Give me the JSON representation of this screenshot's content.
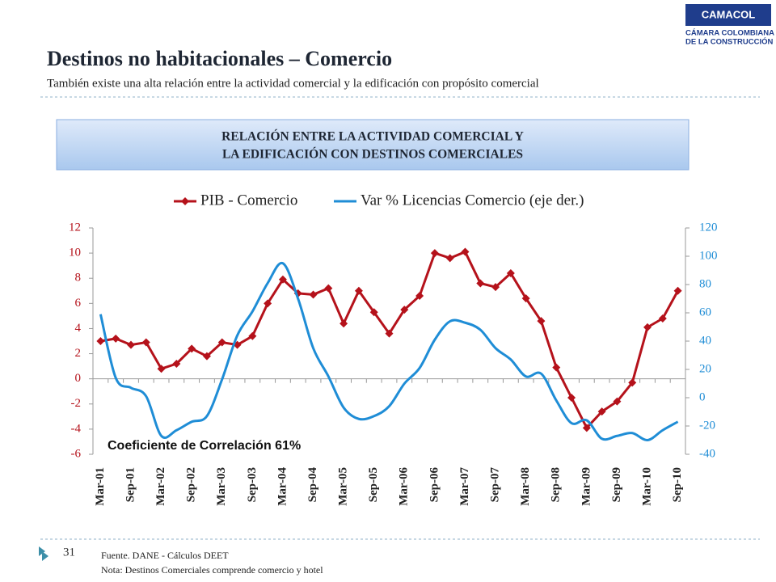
{
  "logo": {
    "name": "CAMACOL",
    "line1": "CÁMARA COLOMBIANA",
    "line2": "DE LA CONSTRUCCIÓN"
  },
  "header": {
    "title": "Destinos no habitacionales – Comercio",
    "subtitle": "También existe una alta relación entre la actividad comercial y la edificación con propósito comercial"
  },
  "box_title": [
    "RELACIÓN ENTRE LA ACTIVIDAD COMERCIAL Y",
    "LA EDIFICACIÓN CON DESTINOS COMERCIALES"
  ],
  "page_number": 31,
  "footer": [
    "Fuente. DANE  - Cálculos DEET",
    "Nota: Destinos Comerciales comprende comercio y hotel"
  ],
  "chart_data": {
    "type": "line",
    "annotation": "Coeficiente de Correlación 61%",
    "categories": [
      "Mar-01",
      null,
      "Sep-01",
      null,
      "Mar-02",
      null,
      "Sep-02",
      null,
      "Mar-03",
      null,
      "Sep-03",
      null,
      "Mar-04",
      null,
      "Sep-04",
      null,
      "Mar-05",
      null,
      "Sep-05",
      null,
      "Mar-06",
      null,
      "Sep-06",
      null,
      "Mar-07",
      null,
      "Sep-07",
      null,
      "Mar-08",
      null,
      "Sep-08",
      null,
      "Mar-09",
      null,
      "Sep-09",
      null,
      "Mar-10",
      null,
      "Sep-10"
    ],
    "series": [
      {
        "name": "PIB - Comercio",
        "color": "#b5121b",
        "marker": "diamond",
        "values": [
          3.0,
          3.2,
          2.7,
          2.9,
          0.8,
          1.2,
          2.4,
          1.8,
          2.9,
          2.7,
          3.4,
          6.0,
          7.9,
          6.8,
          6.7,
          7.2,
          4.4,
          7.0,
          5.3,
          3.6,
          5.5,
          6.6,
          10.0,
          9.6,
          10.1,
          7.6,
          7.3,
          8.4,
          6.4,
          4.6,
          0.9,
          -1.5,
          -3.9,
          -2.6,
          -1.8,
          -0.3,
          4.1,
          4.8,
          7.0
        ]
      },
      {
        "name": "Var % Licencias Comercio (eje der.)",
        "color": "#1f8dd6",
        "axis": "y2",
        "values": [
          59,
          14,
          7,
          1,
          -27,
          -23,
          -17,
          -13,
          13,
          44,
          61,
          81,
          95,
          70,
          35,
          15,
          -7,
          -15,
          -13,
          -6,
          10,
          21,
          41,
          54,
          53,
          48,
          35,
          27,
          15,
          17,
          -2,
          -18,
          -16,
          -29,
          -27,
          -25,
          -30,
          -23,
          -17
        ]
      }
    ],
    "ylim": [
      -6,
      12
    ],
    "yticks": [
      -6,
      -4,
      -2,
      0,
      2,
      4,
      6,
      8,
      10,
      12
    ],
    "y2lim": [
      -40,
      120
    ],
    "y2ticks": [
      -40,
      -20,
      0,
      20,
      40,
      60,
      80,
      100,
      120
    ],
    "legend": "top"
  }
}
